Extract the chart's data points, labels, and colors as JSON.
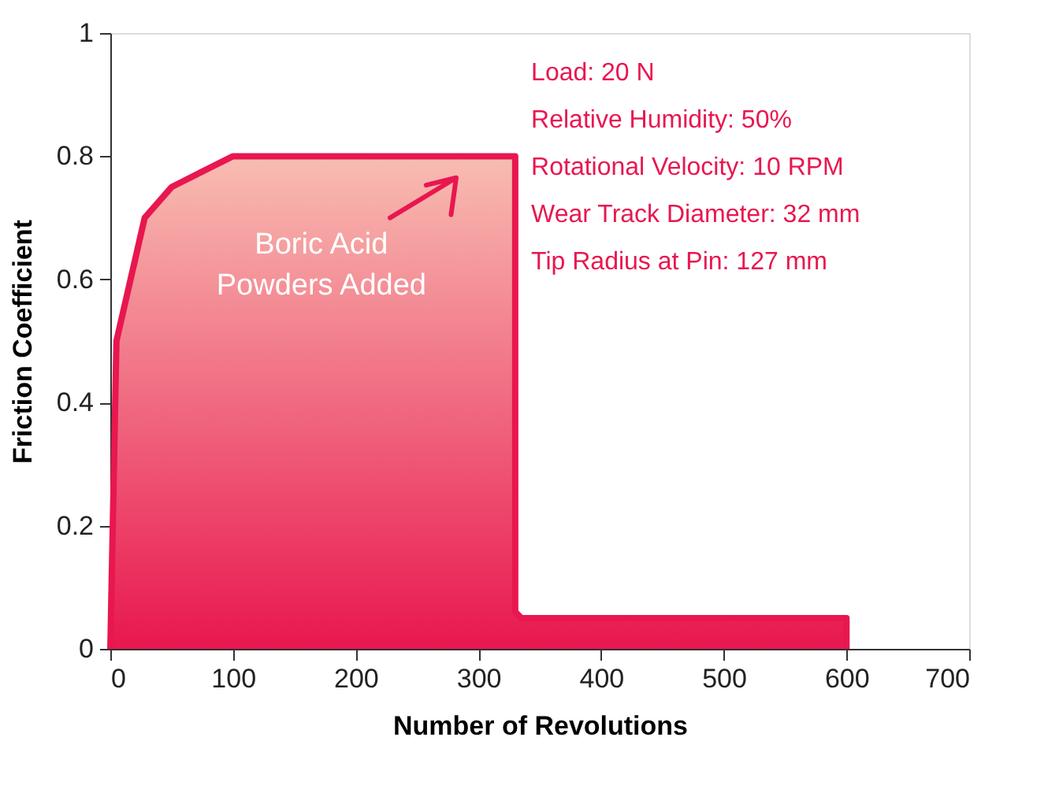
{
  "chart_data": {
    "type": "area",
    "xlabel": "Number of Revolutions",
    "ylabel": "Friction Coefficient",
    "x": [
      0,
      5,
      28,
      50,
      100,
      330,
      330,
      335,
      600,
      600
    ],
    "series": [
      {
        "color": "#e8174f",
        "values": [
          0,
          0.5,
          0.7,
          0.75,
          0.8,
          0.8,
          0.06,
          0.05,
          0.05,
          0
        ]
      }
    ],
    "xlim": [
      0,
      700
    ],
    "xticks": [
      0,
      100,
      200,
      300,
      400,
      500,
      600,
      700
    ],
    "ylim": [
      0,
      1
    ],
    "yticks": [
      0,
      0.2,
      0.4,
      0.6,
      0.8,
      1
    ],
    "grid": false,
    "annotations": [
      {
        "text": "Boric Acid\nPowders Added",
        "x": 284,
        "y": 0.8
      },
      "Load: 20 N",
      "Relative Humidity: 50%",
      "Rotational Velocity: 10 RPM",
      "Wear Track Diameter: 32 mm",
      "Tip Radius at Pin: 127 mm"
    ]
  }
}
